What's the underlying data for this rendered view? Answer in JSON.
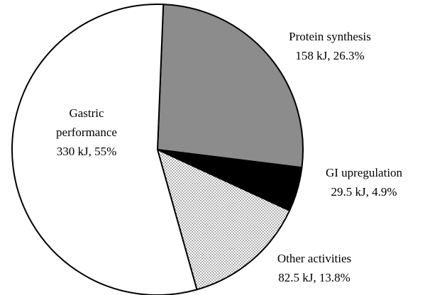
{
  "chart_data": {
    "type": "pie",
    "categories": [
      "Protein synthesis",
      "GI upregulation",
      "Other activities",
      "Gastric performance"
    ],
    "values": [
      158,
      29.5,
      82.5,
      330
    ],
    "value_labels": [
      "158 kJ, 26.3%",
      "29.5 kJ, 4.9%",
      "82.5 kJ, 13.8%",
      "330 kJ, 55%"
    ],
    "colors": [
      "#8c8c8c",
      "#000000",
      "#ffffff",
      "#ffffff"
    ],
    "dotted": [
      false,
      false,
      true,
      false
    ]
  }
}
